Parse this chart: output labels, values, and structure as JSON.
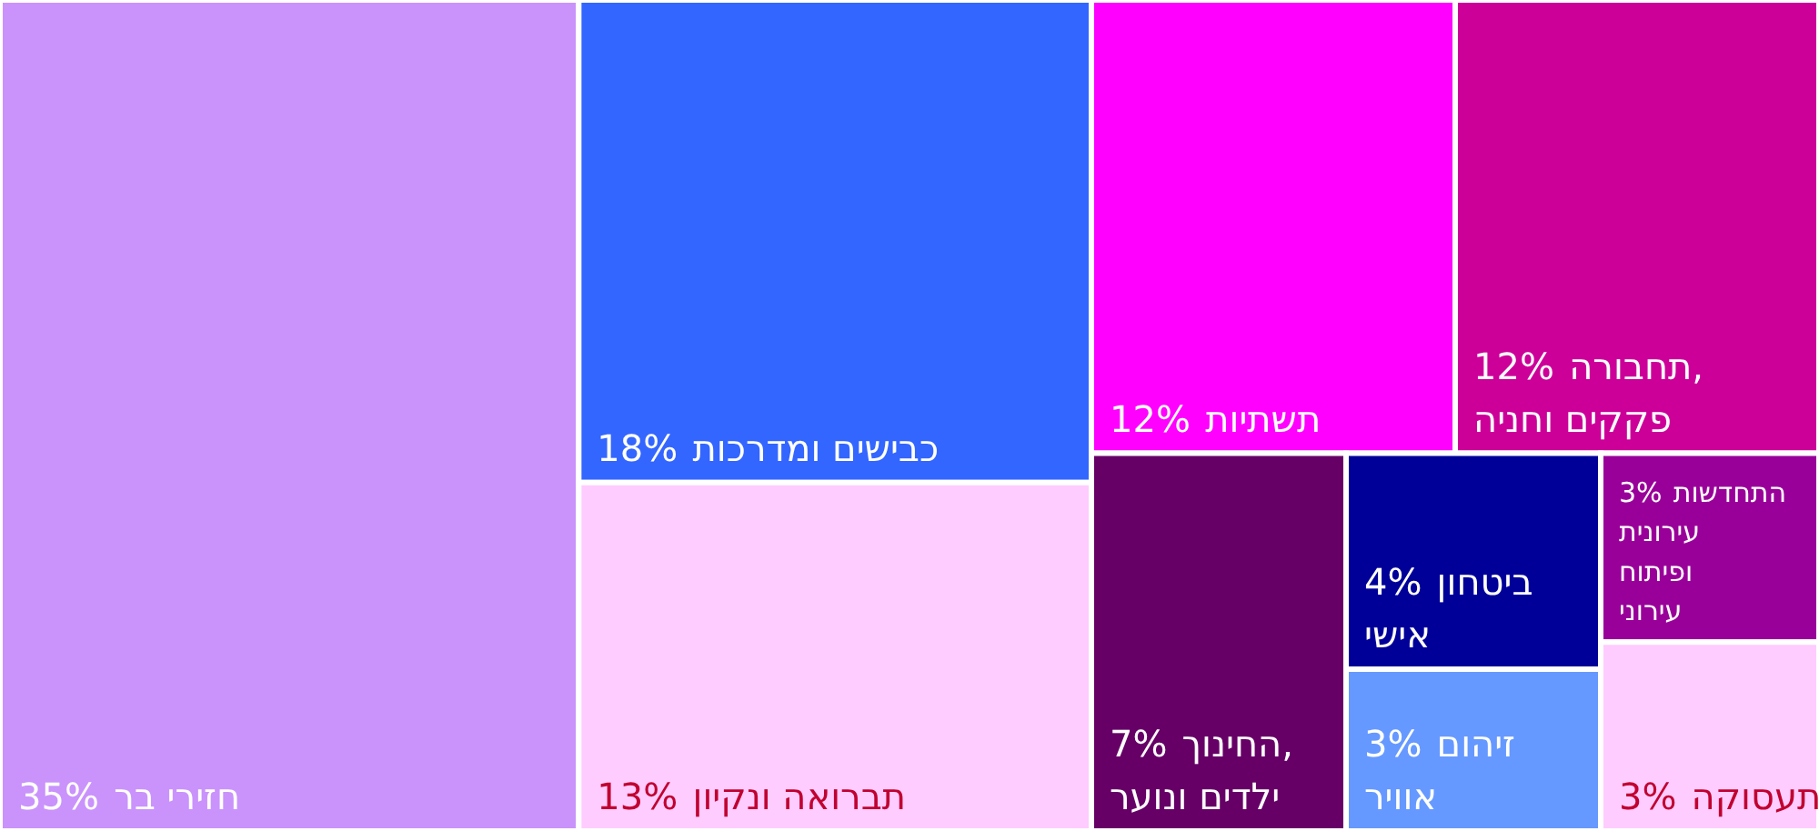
{
  "chart_data": {
    "type": "other",
    "categories": [
      "חזירי בר",
      "כבישים ומדרכות",
      "תברואה ונקיון",
      "תשתיות",
      "תחבורה, פקקים וחניה",
      "החינוך, ילדים ונוער",
      "ביטחון אישי",
      "זיהום אוויר",
      "התחדשות עירונית ופיתוח עירוני",
      "תעסוקה"
    ],
    "values": [
      35,
      18,
      13,
      12,
      12,
      7,
      4,
      3,
      3,
      3
    ],
    "value_labels": [
      "35%",
      "18%",
      "13%",
      "12%",
      "12%",
      "7%",
      "4%",
      "3%",
      "3%",
      "3%"
    ],
    "colors": [
      "#c993fb",
      "#3366ff",
      "#ffccff",
      "#ff00ff",
      "#cc0099",
      "#660066",
      "#000099",
      "#6699ff",
      "#990099",
      "#ffccff"
    ]
  }
}
